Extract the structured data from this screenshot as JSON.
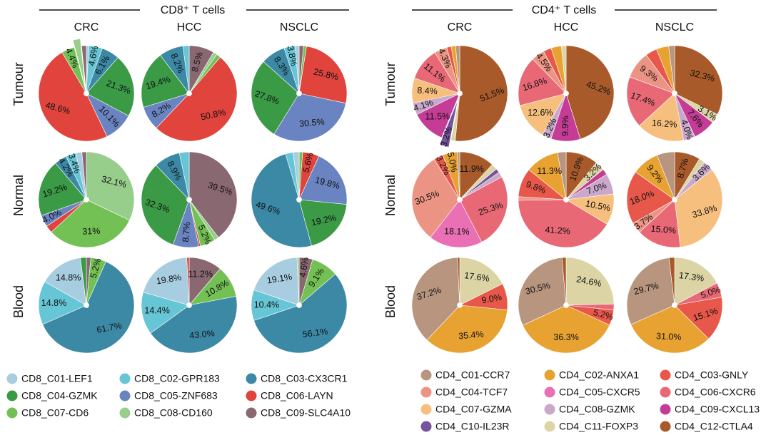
{
  "palette": {
    "CD8_C01-LEF1": "#a8cde0",
    "CD8_C02-GPR183": "#66c6d6",
    "CD8_C03-CX3CR1": "#3c89a6",
    "CD8_C04-GZMK": "#3a9a46",
    "CD8_C05-ZNF683": "#6a84c2",
    "CD8_C06-LAYN": "#e0443c",
    "CD8_C07-CD6": "#73c155",
    "CD8_C08-CD160": "#97ce8c",
    "CD8_C09-SLC4A10": "#8a6872",
    "CD4_C01-CCR7": "#b8957e",
    "CD4_C02-ANXA1": "#e8a231",
    "CD4_C03-GNLY": "#e8584a",
    "CD4_C04-TCF7": "#ec9484",
    "CD4_C05-CXCR5": "#ea70b5",
    "CD4_C06-CXCR6": "#e86876",
    "CD4_C07-GZMA": "#f7bf7e",
    "CD4_C08-GZMK": "#c9a8cb",
    "CD4_C09-CXCL13": "#c43c95",
    "CD4_C10-IL23R": "#76539e",
    "CD4_C11-FOXP3": "#dcd4a4",
    "CD4_C12-CTLA4": "#a85a2b"
  },
  "panels": [
    {
      "title": "CD8⁺ T cells",
      "columns": [
        "CRC",
        "HCC",
        "NSCLC"
      ]
    },
    {
      "title": "CD4⁺ T cells",
      "columns": [
        "CRC",
        "HCC",
        "NSCLC"
      ]
    }
  ],
  "rows": [
    "Tumour",
    "Normal",
    "Blood"
  ],
  "chart_data": [
    {
      "type": "pie",
      "panel": "CD8⁺ T cells",
      "tissue": "Tumour",
      "cancer": "CRC",
      "slices": [
        {
          "cluster": "CD8_C01-LEF1",
          "value": 0.8,
          "label": ""
        },
        {
          "cluster": "CD8_C02-GPR183",
          "value": 4.6,
          "label": "4.6%"
        },
        {
          "cluster": "CD8_C03-CX3CR1",
          "value": 6.1,
          "label": "6.1%"
        },
        {
          "cluster": "CD8_C04-GZMK",
          "value": 21.3,
          "label": "21.3%"
        },
        {
          "cluster": "CD8_C05-ZNF683",
          "value": 10.1,
          "label": "10.1%"
        },
        {
          "cluster": "CD8_C06-LAYN",
          "value": 48.6,
          "label": "48.6%"
        },
        {
          "cluster": "CD8_C07-CD6",
          "value": 4.4,
          "label": "4.4%"
        },
        {
          "cluster": "CD8_C08-CD160",
          "value": 2.5,
          "label": "",
          "explode": true
        },
        {
          "cluster": "CD8_C09-SLC4A10",
          "value": 1.6,
          "label": ""
        }
      ]
    },
    {
      "type": "pie",
      "panel": "CD8⁺ T cells",
      "tissue": "Tumour",
      "cancer": "HCC",
      "slices": [
        {
          "cluster": "CD8_C09-SLC4A10",
          "value": 8.5,
          "label": "8.5%"
        },
        {
          "cluster": "CD8_C08-CD160",
          "value": 1.3,
          "label": ""
        },
        {
          "cluster": "CD8_C07-CD6",
          "value": 1.5,
          "label": ""
        },
        {
          "cluster": "CD8_C06-LAYN",
          "value": 50.8,
          "label": "50.8%"
        },
        {
          "cluster": "CD8_C05-ZNF683",
          "value": 8.2,
          "label": "8.2%"
        },
        {
          "cluster": "CD8_C04-GZMK",
          "value": 19.4,
          "label": "19.4%"
        },
        {
          "cluster": "CD8_C03-CX3CR1",
          "value": 8.2,
          "label": "8.2%"
        },
        {
          "cluster": "CD8_C02-GPR183",
          "value": 2.1,
          "label": ""
        }
      ]
    },
    {
      "type": "pie",
      "panel": "CD8⁺ T cells",
      "tissue": "Tumour",
      "cancer": "NSCLC",
      "slices": [
        {
          "cluster": "CD8_C09-SLC4A10",
          "value": 1.5,
          "label": ""
        },
        {
          "cluster": "CD8_C07-CD6",
          "value": 1.0,
          "label": ""
        },
        {
          "cluster": "CD8_C06-LAYN",
          "value": 25.8,
          "label": "25.8%"
        },
        {
          "cluster": "CD8_C05-ZNF683",
          "value": 30.5,
          "label": "30.5%"
        },
        {
          "cluster": "CD8_C04-GZMK",
          "value": 27.8,
          "label": "27.8%"
        },
        {
          "cluster": "CD8_C03-CX3CR1",
          "value": 8.3,
          "label": "8.3%"
        },
        {
          "cluster": "CD8_C02-GPR183",
          "value": 3.8,
          "label": "3.8%"
        },
        {
          "cluster": "CD8_C01-LEF1",
          "value": 1.3,
          "label": ""
        }
      ]
    },
    {
      "type": "pie",
      "panel": "CD8⁺ T cells",
      "tissue": "Normal",
      "cancer": "CRC",
      "slices": [
        {
          "cluster": "CD8_C08-CD160",
          "value": 32.1,
          "label": "32.1%"
        },
        {
          "cluster": "CD8_C07-CD6",
          "value": 31.0,
          "label": "31%"
        },
        {
          "cluster": "CD8_C06-LAYN",
          "value": 2.5,
          "label": ""
        },
        {
          "cluster": "CD8_C05-ZNF683",
          "value": 4.0,
          "label": "4.0%"
        },
        {
          "cluster": "CD8_C04-GZMK",
          "value": 19.2,
          "label": "19.2%"
        },
        {
          "cluster": "CD8_C03-CX3CR1",
          "value": 4.2,
          "label": "4.2%"
        },
        {
          "cluster": "CD8_C02-GPR183",
          "value": 3.4,
          "label": "3.4%"
        },
        {
          "cluster": "CD8_C01-LEF1",
          "value": 2.1,
          "label": ""
        },
        {
          "cluster": "CD8_C09-SLC4A10",
          "value": 1.5,
          "label": ""
        }
      ]
    },
    {
      "type": "pie",
      "panel": "CD8⁺ T cells",
      "tissue": "Normal",
      "cancer": "HCC",
      "slices": [
        {
          "cluster": "CD8_C09-SLC4A10",
          "value": 39.5,
          "label": "39.5%"
        },
        {
          "cluster": "CD8_C08-CD160",
          "value": 1.5,
          "label": ""
        },
        {
          "cluster": "CD8_C07-CD6",
          "value": 5.2,
          "label": "5.2%"
        },
        {
          "cluster": "CD8_C06-LAYN",
          "value": 0.6,
          "label": ""
        },
        {
          "cluster": "CD8_C05-ZNF683",
          "value": 8.7,
          "label": "8.7%"
        },
        {
          "cluster": "CD8_C04-GZMK",
          "value": 32.3,
          "label": "32.3%"
        },
        {
          "cluster": "CD8_C03-CX3CR1",
          "value": 8.9,
          "label": "8.9%"
        },
        {
          "cluster": "CD8_C02-GPR183",
          "value": 3.3,
          "label": ""
        }
      ]
    },
    {
      "type": "pie",
      "panel": "CD8⁺ T cells",
      "tissue": "Normal",
      "cancer": "NSCLC",
      "slices": [
        {
          "cluster": "CD8_C07-CD6",
          "value": 1.2,
          "label": ""
        },
        {
          "cluster": "CD8_C06-LAYN",
          "value": 5.6,
          "label": "5.6%"
        },
        {
          "cluster": "CD8_C05-ZNF683",
          "value": 19.8,
          "label": "19.8%"
        },
        {
          "cluster": "CD8_C04-GZMK",
          "value": 19.2,
          "label": "19.2%"
        },
        {
          "cluster": "CD8_C03-CX3CR1",
          "value": 49.6,
          "label": "49.6%"
        },
        {
          "cluster": "CD8_C02-GPR183",
          "value": 2.6,
          "label": ""
        },
        {
          "cluster": "CD8_C01-LEF1",
          "value": 2.0,
          "label": ""
        }
      ]
    },
    {
      "type": "pie",
      "panel": "CD8⁺ T cells",
      "tissue": "Blood",
      "cancer": "CRC",
      "slices": [
        {
          "cluster": "CD8_C09-SLC4A10",
          "value": 1.5,
          "label": ""
        },
        {
          "cluster": "CD8_C07-CD6",
          "value": 5.2,
          "label": "5.2%"
        },
        {
          "cluster": "CD8_C03-CX3CR1",
          "value": 61.7,
          "label": "61.7%"
        },
        {
          "cluster": "CD8_C02-GPR183",
          "value": 14.8,
          "label": "14.8%"
        },
        {
          "cluster": "CD8_C01-LEF1",
          "value": 14.8,
          "label": "14.8%"
        },
        {
          "cluster": "CD8_C04-GZMK",
          "value": 2.0,
          "label": ""
        }
      ]
    },
    {
      "type": "pie",
      "panel": "CD8⁺ T cells",
      "tissue": "Blood",
      "cancer": "HCC",
      "slices": [
        {
          "cluster": "CD8_C09-SLC4A10",
          "value": 11.2,
          "label": "11.2%"
        },
        {
          "cluster": "CD8_C07-CD6",
          "value": 10.8,
          "label": "10.8%"
        },
        {
          "cluster": "CD8_C03-CX3CR1",
          "value": 43.0,
          "label": "43.0%"
        },
        {
          "cluster": "CD8_C02-GPR183",
          "value": 14.4,
          "label": "14.4%"
        },
        {
          "cluster": "CD8_C01-LEF1",
          "value": 19.8,
          "label": "19.8%"
        },
        {
          "cluster": "CD8_C06-LAYN",
          "value": 0.8,
          "label": ""
        }
      ]
    },
    {
      "type": "pie",
      "panel": "CD8⁺ T cells",
      "tissue": "Blood",
      "cancer": "NSCLC",
      "slices": [
        {
          "cluster": "CD8_C09-SLC4A10",
          "value": 4.6,
          "label": "4.6%"
        },
        {
          "cluster": "CD8_C07-CD6",
          "value": 9.1,
          "label": "9.1%"
        },
        {
          "cluster": "CD8_C03-CX3CR1",
          "value": 56.1,
          "label": "56.1%"
        },
        {
          "cluster": "CD8_C02-GPR183",
          "value": 10.4,
          "label": "10.4%"
        },
        {
          "cluster": "CD8_C01-LEF1",
          "value": 19.1,
          "label": "19.1%"
        },
        {
          "cluster": "CD8_C08-CD160",
          "value": 0.7,
          "label": ""
        }
      ]
    },
    {
      "type": "pie",
      "panel": "CD4⁺ T cells",
      "tissue": "Tumour",
      "cancer": "CRC",
      "slices": [
        {
          "cluster": "CD4_C12-CTLA4",
          "value": 51.5,
          "label": "51.5%"
        },
        {
          "cluster": "CD4_C11-FOXP3",
          "value": 1.5,
          "label": ""
        },
        {
          "cluster": "CD4_C10-IL23R",
          "value": 3.2,
          "label": "3.2%",
          "explode": true
        },
        {
          "cluster": "CD4_C09-CXCL13",
          "value": 11.5,
          "label": "11.5%"
        },
        {
          "cluster": "CD4_C08-GZMK",
          "value": 4.1,
          "label": "4.1%"
        },
        {
          "cluster": "CD4_C07-GZMA",
          "value": 8.4,
          "label": "8.4%"
        },
        {
          "cluster": "CD4_C06-CXCR6",
          "value": 11.1,
          "label": "11.1%"
        },
        {
          "cluster": "CD4_C04-TCF7",
          "value": 4.3,
          "label": "4.3%"
        },
        {
          "cluster": "CD4_C03-GNLY",
          "value": 1.5,
          "label": ""
        },
        {
          "cluster": "CD4_C02-ANXA1",
          "value": 1.5,
          "label": ""
        },
        {
          "cluster": "CD4_C01-CCR7",
          "value": 1.4,
          "label": ""
        }
      ]
    },
    {
      "type": "pie",
      "panel": "CD4⁺ T cells",
      "tissue": "Tumour",
      "cancer": "HCC",
      "slices": [
        {
          "cluster": "CD4_C12-CTLA4",
          "value": 45.2,
          "label": "45.2%"
        },
        {
          "cluster": "CD4_C09-CXCL13",
          "value": 9.9,
          "label": "9.9%"
        },
        {
          "cluster": "CD4_C08-GZMK",
          "value": 3.2,
          "label": "3.2%"
        },
        {
          "cluster": "CD4_C07-GZMA",
          "value": 12.6,
          "label": "12.6%"
        },
        {
          "cluster": "CD4_C06-CXCR6",
          "value": 16.8,
          "label": "16.8%"
        },
        {
          "cluster": "CD4_C04-TCF7",
          "value": 4.5,
          "label": "4.5%"
        },
        {
          "cluster": "CD4_C03-GNLY",
          "value": 2.7,
          "label": ""
        },
        {
          "cluster": "CD4_C02-ANXA1",
          "value": 3.5,
          "label": ""
        },
        {
          "cluster": "CD4_C11-FOXP3",
          "value": 1.6,
          "label": ""
        }
      ]
    },
    {
      "type": "pie",
      "panel": "CD4⁺ T cells",
      "tissue": "Tumour",
      "cancer": "NSCLC",
      "slices": [
        {
          "cluster": "CD4_C12-CTLA4",
          "value": 32.3,
          "label": "32.3%"
        },
        {
          "cluster": "CD4_C11-FOXP3",
          "value": 3.1,
          "label": "3.1%"
        },
        {
          "cluster": "CD4_C09-CXCL13",
          "value": 7.6,
          "label": "7.6%"
        },
        {
          "cluster": "CD4_C08-GZMK",
          "value": 4.0,
          "label": "4.0%"
        },
        {
          "cluster": "CD4_C07-GZMA",
          "value": 16.2,
          "label": "16.2%"
        },
        {
          "cluster": "CD4_C06-CXCR6",
          "value": 17.4,
          "label": "17.4%"
        },
        {
          "cluster": "CD4_C04-TCF7",
          "value": 9.3,
          "label": "9.3%"
        },
        {
          "cluster": "CD4_C03-GNLY",
          "value": 3.9,
          "label": ""
        },
        {
          "cluster": "CD4_C02-ANXA1",
          "value": 4.2,
          "label": ""
        },
        {
          "cluster": "CD4_C01-CCR7",
          "value": 2.0,
          "label": ""
        }
      ]
    },
    {
      "type": "pie",
      "panel": "CD4⁺ T cells",
      "tissue": "Normal",
      "cancer": "CRC",
      "slices": [
        {
          "cluster": "CD4_C12-CTLA4",
          "value": 11.9,
          "label": "11.9%"
        },
        {
          "cluster": "CD4_C11-FOXP3",
          "value": 2.0,
          "label": ""
        },
        {
          "cluster": "CD4_C10-IL23R",
          "value": 1.4,
          "label": ""
        },
        {
          "cluster": "CD4_C08-GZMK",
          "value": 1.8,
          "label": ""
        },
        {
          "cluster": "CD4_C06-CXCR6",
          "value": 25.3,
          "label": "25.3%"
        },
        {
          "cluster": "CD4_C05-CXCR5",
          "value": 18.1,
          "label": "18.1%"
        },
        {
          "cluster": "CD4_C04-TCF7",
          "value": 30.5,
          "label": "30.5%"
        },
        {
          "cluster": "CD4_C03-GNLY",
          "value": 3.2,
          "label": "3.2%"
        },
        {
          "cluster": "CD4_C02-ANXA1",
          "value": 5.0,
          "label": "5.0%"
        },
        {
          "cluster": "CD4_C01-CCR7",
          "value": 0.8,
          "label": ""
        }
      ]
    },
    {
      "type": "pie",
      "panel": "CD4⁺ T cells",
      "tissue": "Normal",
      "cancer": "HCC",
      "slices": [
        {
          "cluster": "CD4_C12-CTLA4",
          "value": 10.9,
          "label": "10.9%"
        },
        {
          "cluster": "CD4_C11-FOXP3",
          "value": 3.2,
          "label": "3.2%"
        },
        {
          "cluster": "CD4_C09-CXCL13",
          "value": 2.0,
          "label": ""
        },
        {
          "cluster": "CD4_C08-GZMK",
          "value": 7.0,
          "label": "7.0%"
        },
        {
          "cluster": "CD4_C07-GZMA",
          "value": 10.5,
          "label": "10.5%"
        },
        {
          "cluster": "CD4_C06-CXCR6",
          "value": 41.2,
          "label": "41.2%"
        },
        {
          "cluster": "CD4_C04-TCF7",
          "value": 1.2,
          "label": ""
        },
        {
          "cluster": "CD4_C03-GNLY",
          "value": 9.8,
          "label": "9.8%"
        },
        {
          "cluster": "CD4_C02-ANXA1",
          "value": 11.3,
          "label": "11.3%"
        },
        {
          "cluster": "CD4_C01-CCR7",
          "value": 2.9,
          "label": ""
        }
      ]
    },
    {
      "type": "pie",
      "panel": "CD4⁺ T cells",
      "tissue": "Normal",
      "cancer": "NSCLC",
      "slices": [
        {
          "cluster": "CD4_C12-CTLA4",
          "value": 8.7,
          "label": "8.7%"
        },
        {
          "cluster": "CD4_C11-FOXP3",
          "value": 2.0,
          "label": ""
        },
        {
          "cluster": "CD4_C08-GZMK",
          "value": 3.6,
          "label": "3.6%"
        },
        {
          "cluster": "CD4_C07-GZMA",
          "value": 33.8,
          "label": "33.8%"
        },
        {
          "cluster": "CD4_C06-CXCR6",
          "value": 15.0,
          "label": "15.0%"
        },
        {
          "cluster": "CD4_C04-TCF7",
          "value": 3.7,
          "label": "3.7%"
        },
        {
          "cluster": "CD4_C03-GNLY",
          "value": 18.0,
          "label": "18.0%"
        },
        {
          "cluster": "CD4_C02-ANXA1",
          "value": 9.2,
          "label": "9.2%"
        },
        {
          "cluster": "CD4_C01-CCR7",
          "value": 6.0,
          "label": ""
        }
      ]
    },
    {
      "type": "pie",
      "panel": "CD4⁺ T cells",
      "tissue": "Blood",
      "cancer": "CRC",
      "slices": [
        {
          "cluster": "CD4_C11-FOXP3",
          "value": 17.6,
          "label": "17.6%"
        },
        {
          "cluster": "CD4_C03-GNLY",
          "value": 9.0,
          "label": "9.0%"
        },
        {
          "cluster": "CD4_C02-ANXA1",
          "value": 35.4,
          "label": "35.4%"
        },
        {
          "cluster": "CD4_C01-CCR7",
          "value": 37.2,
          "label": "37.2%"
        },
        {
          "cluster": "CD4_C12-CTLA4",
          "value": 0.8,
          "label": ""
        }
      ]
    },
    {
      "type": "pie",
      "panel": "CD4⁺ T cells",
      "tissue": "Blood",
      "cancer": "HCC",
      "slices": [
        {
          "cluster": "CD4_C11-FOXP3",
          "value": 24.6,
          "label": "24.6%"
        },
        {
          "cluster": "CD4_C06-CXCR6",
          "value": 2.0,
          "label": ""
        },
        {
          "cluster": "CD4_C03-GNLY",
          "value": 5.2,
          "label": "5.2%"
        },
        {
          "cluster": "CD4_C02-ANXA1",
          "value": 36.3,
          "label": "36.3%"
        },
        {
          "cluster": "CD4_C01-CCR7",
          "value": 30.5,
          "label": "30.5%"
        },
        {
          "cluster": "CD4_C12-CTLA4",
          "value": 1.4,
          "label": ""
        }
      ]
    },
    {
      "type": "pie",
      "panel": "CD4⁺ T cells",
      "tissue": "Blood",
      "cancer": "NSCLC",
      "slices": [
        {
          "cluster": "CD4_C11-FOXP3",
          "value": 17.3,
          "label": "17.3%"
        },
        {
          "cluster": "CD4_C06-CXCR6",
          "value": 5.0,
          "label": "5.0%"
        },
        {
          "cluster": "CD4_C03-GNLY",
          "value": 15.1,
          "label": "15.1%"
        },
        {
          "cluster": "CD4_C02-ANXA1",
          "value": 31.0,
          "label": "31.0%"
        },
        {
          "cluster": "CD4_C01-CCR7",
          "value": 29.7,
          "label": "29.7%"
        },
        {
          "cluster": "CD4_C12-CTLA4",
          "value": 1.9,
          "label": ""
        }
      ]
    }
  ],
  "legends": [
    {
      "panel": "CD8⁺ T cells",
      "items": [
        "CD8_C01-LEF1",
        "CD8_C02-GPR183",
        "CD8_C03-CX3CR1",
        "CD8_C04-GZMK",
        "CD8_C05-ZNF683",
        "CD8_C06-LAYN",
        "CD8_C07-CD6",
        "CD8_C08-CD160",
        "CD8_C09-SLC4A10"
      ]
    },
    {
      "panel": "CD4⁺ T cells",
      "items": [
        "CD4_C01-CCR7",
        "CD4_C02-ANXA1",
        "CD4_C03-GNLY",
        "CD4_C04-TCF7",
        "CD4_C05-CXCR5",
        "CD4_C06-CXCR6",
        "CD4_C07-GZMA",
        "CD4_C08-GZMK",
        "CD4_C09-CXCL13",
        "CD4_C10-IL23R",
        "CD4_C11-FOXP3",
        "CD4_C12-CTLA4"
      ]
    }
  ]
}
